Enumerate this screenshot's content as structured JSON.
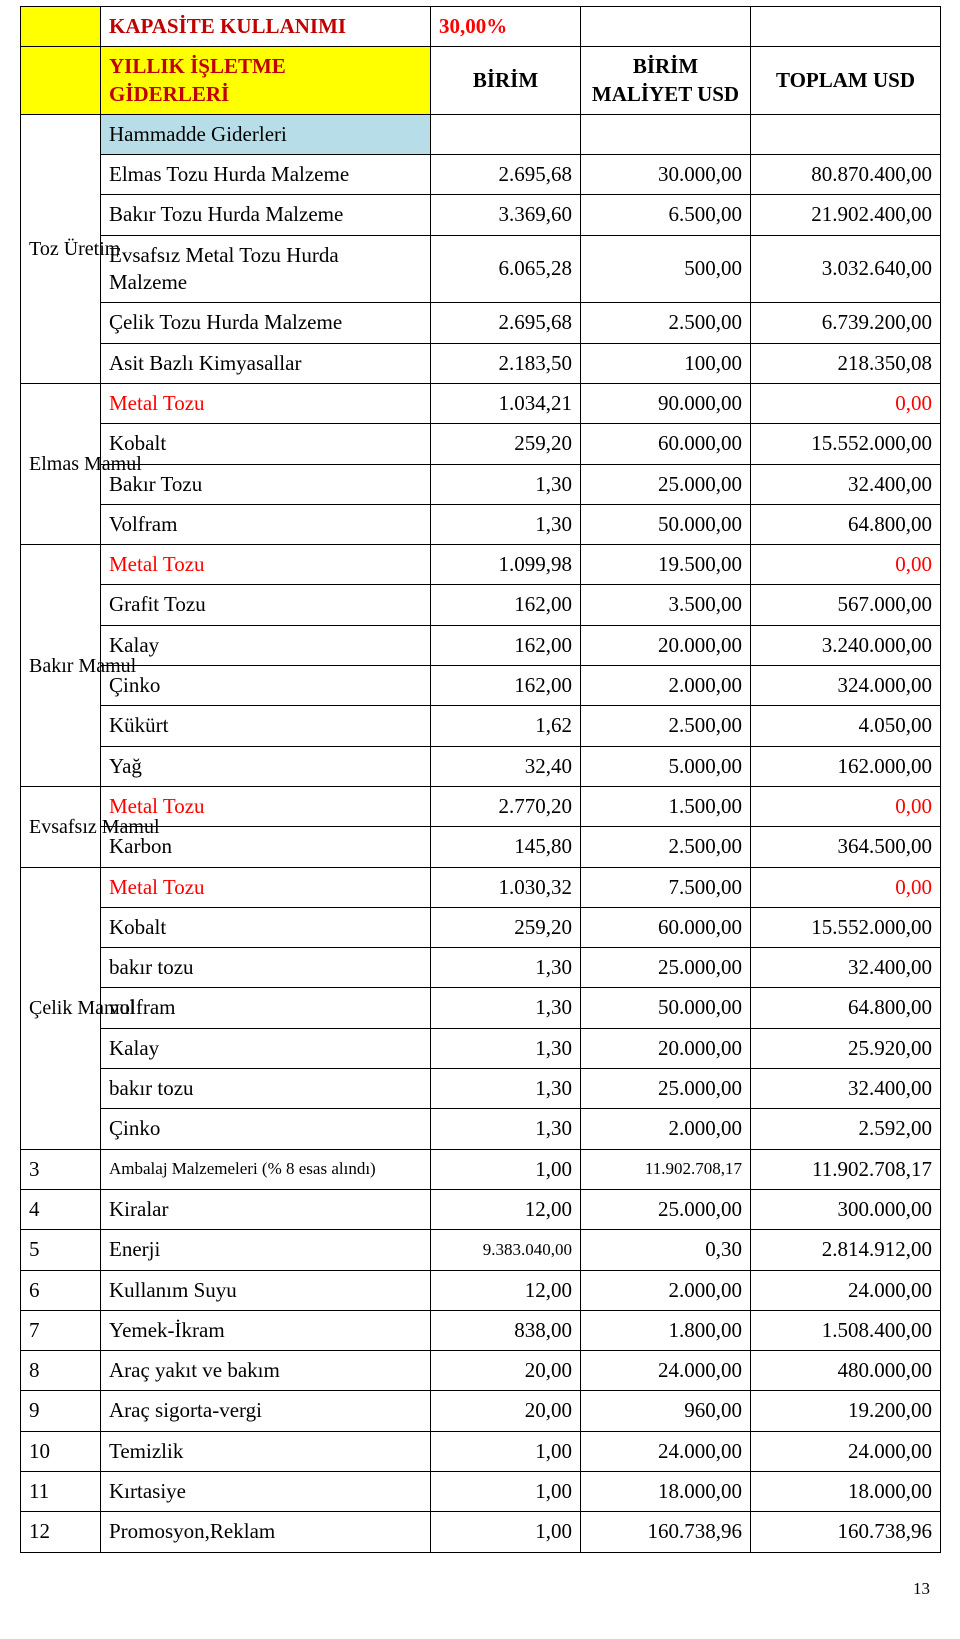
{
  "colors": {
    "yellow": "#ffff00",
    "blue": "#b7dee8",
    "red_text": "#ff0000",
    "dark_red": "#c00000",
    "border": "#000000",
    "bg": "#ffffff"
  },
  "fonts": {
    "family": "Times New Roman",
    "base_pt": 16,
    "small_pt": 13
  },
  "header": {
    "kapasite": "KAPASİTE KULLANIMI",
    "pct": "30,00%",
    "yillik1": "YILLIK İŞLETME",
    "yillik2": "GİDERLERİ",
    "birim": "BİRİM",
    "bmaliyet1": "BİRİM",
    "bmaliyet2": "MALİYET USD",
    "toplam": "TOPLAM USD"
  },
  "groups": {
    "toz": "Toz Üretim",
    "elmas": "Elmas Mamul",
    "bakir": "Bakır Mamul",
    "evsafsiz": "Evsafsız Mamul",
    "celik": "Çelik Mamul"
  },
  "subheader": {
    "hammadde": "Hammadde Giderleri"
  },
  "rows": {
    "toz": [
      {
        "name": "Elmas Tozu Hurda Malzeme",
        "b": "2.695,68",
        "m": "30.000,00",
        "t": "80.870.400,00"
      },
      {
        "name": "Bakır Tozu Hurda Malzeme",
        "b": "3.369,60",
        "m": "6.500,00",
        "t": "21.902.400,00"
      },
      {
        "name": "Evsafsız Metal Tozu Hurda Malzeme",
        "b": "6.065,28",
        "m": "500,00",
        "t": "3.032.640,00"
      },
      {
        "name": "Çelik Tozu Hurda Malzeme",
        "b": "2.695,68",
        "m": "2.500,00",
        "t": "6.739.200,00"
      },
      {
        "name": "Asit Bazlı Kimyasallar",
        "b": "2.183,50",
        "m": "100,00",
        "t": "218.350,08"
      }
    ],
    "elmas": [
      {
        "name": "Metal Tozu",
        "b": "1.034,21",
        "m": "90.000,00",
        "t": "0,00",
        "red": true
      },
      {
        "name": "Kobalt",
        "b": "259,20",
        "m": "60.000,00",
        "t": "15.552.000,00"
      },
      {
        "name": "Bakır Tozu",
        "b": "1,30",
        "m": "25.000,00",
        "t": "32.400,00"
      },
      {
        "name": "Volfram",
        "b": "1,30",
        "m": "50.000,00",
        "t": "64.800,00"
      }
    ],
    "bakir": [
      {
        "name": "Metal Tozu",
        "b": "1.099,98",
        "m": "19.500,00",
        "t": "0,00",
        "red": true
      },
      {
        "name": "Grafit Tozu",
        "b": "162,00",
        "m": "3.500,00",
        "t": "567.000,00"
      },
      {
        "name": "Kalay",
        "b": "162,00",
        "m": "20.000,00",
        "t": "3.240.000,00"
      },
      {
        "name": "Çinko",
        "b": "162,00",
        "m": "2.000,00",
        "t": "324.000,00"
      },
      {
        "name": "Kükürt",
        "b": "1,62",
        "m": "2.500,00",
        "t": "4.050,00"
      },
      {
        "name": "Yağ",
        "b": "32,40",
        "m": "5.000,00",
        "t": "162.000,00"
      }
    ],
    "evsafsiz": [
      {
        "name": "Metal Tozu",
        "b": "2.770,20",
        "m": "1.500,00",
        "t": "0,00",
        "red": true
      },
      {
        "name": "Karbon",
        "b": "145,80",
        "m": "2.500,00",
        "t": "364.500,00"
      }
    ],
    "celik": [
      {
        "name": "Metal Tozu",
        "b": "1.030,32",
        "m": "7.500,00",
        "t": "0,00",
        "red": true
      },
      {
        "name": "Kobalt",
        "b": "259,20",
        "m": "60.000,00",
        "t": "15.552.000,00"
      },
      {
        "name": "bakır tozu",
        "b": "1,30",
        "m": "25.000,00",
        "t": "32.400,00"
      },
      {
        "name": "volfram",
        "b": "1,30",
        "m": "50.000,00",
        "t": "64.800,00"
      },
      {
        "name": "Kalay",
        "b": "1,30",
        "m": "20.000,00",
        "t": "25.920,00"
      },
      {
        "name": "bakır tozu",
        "b": "1,30",
        "m": "25.000,00",
        "t": "32.400,00"
      },
      {
        "name": "Çinko",
        "b": "1,30",
        "m": "2.000,00",
        "t": "2.592,00"
      }
    ],
    "numbered": [
      {
        "n": "3",
        "name": "Ambalaj Malzemeleri (% 8 esas alındı)",
        "small": true,
        "b": "1,00",
        "m": "11.902.708,17",
        "msmall": true,
        "t": "11.902.708,17"
      },
      {
        "n": "4",
        "name": "Kiralar",
        "b": "12,00",
        "m": "25.000,00",
        "t": "300.000,00"
      },
      {
        "n": "5",
        "name": "Enerji",
        "b": "9.383.040,00",
        "bsmall": true,
        "m": "0,30",
        "t": "2.814.912,00"
      },
      {
        "n": "6",
        "name": "Kullanım Suyu",
        "b": "12,00",
        "m": "2.000,00",
        "t": "24.000,00"
      },
      {
        "n": "7",
        "name": "Yemek-İkram",
        "b": "838,00",
        "m": "1.800,00",
        "t": "1.508.400,00"
      },
      {
        "n": "8",
        "name": "Araç yakıt ve bakım",
        "b": "20,00",
        "m": "24.000,00",
        "t": "480.000,00"
      },
      {
        "n": "9",
        "name": "Araç sigorta-vergi",
        "b": "20,00",
        "m": "960,00",
        "t": "19.200,00"
      },
      {
        "n": "10",
        "name": "Temizlik",
        "b": "1,00",
        "m": "24.000,00",
        "t": "24.000,00"
      },
      {
        "n": "11",
        "name": "Kırtasiye",
        "b": "1,00",
        "m": "18.000,00",
        "t": "18.000,00"
      },
      {
        "n": "12",
        "name": "Promosyon,Reklam",
        "b": "1,00",
        "m": "160.738,96",
        "t": "160.738,96"
      }
    ]
  },
  "page_number": "13"
}
